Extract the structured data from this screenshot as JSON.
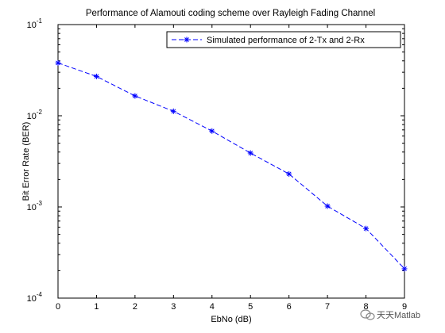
{
  "chart_data": {
    "type": "line",
    "title": "Performance of Alamouti coding scheme over Rayleigh Fading Channel",
    "xlabel": "EbNo (dB)",
    "ylabel": "Bit Error Rate (BER)",
    "xlim": [
      0,
      9
    ],
    "ylim": [
      0.0001,
      0.1
    ],
    "yscale": "log",
    "x_ticks": [
      "0",
      "1",
      "2",
      "3",
      "4",
      "5",
      "6",
      "7",
      "8",
      "9"
    ],
    "y_ticks": [
      {
        "base": "10",
        "exp": "-4"
      },
      {
        "base": "10",
        "exp": "-3"
      },
      {
        "base": "10",
        "exp": "-2"
      },
      {
        "base": "10",
        "exp": "-1"
      }
    ],
    "grid": false,
    "legend_position": "top-right",
    "series": [
      {
        "name": "Simulated performance of 2-Tx and 2-Rx",
        "color": "#0000ff",
        "line_style": "dashed",
        "marker": "asterisk",
        "x": [
          0,
          1,
          2,
          3,
          4,
          5,
          6,
          7,
          8,
          9
        ],
        "y": [
          0.038,
          0.027,
          0.0165,
          0.0112,
          0.0068,
          0.0039,
          0.0023,
          0.00102,
          0.00058,
          0.00021
        ]
      }
    ]
  },
  "watermark": {
    "text": "天天Matlab",
    "icon": "wechat-icon"
  }
}
